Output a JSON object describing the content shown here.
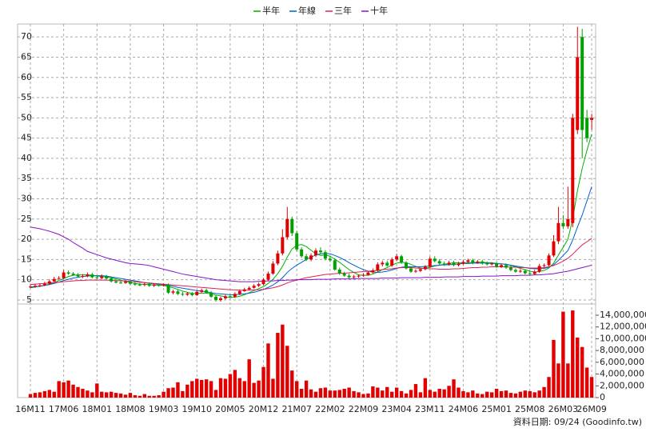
{
  "chart_data": {
    "type": "candlestick",
    "legend": "top",
    "source": "資料日期: 09/24  (Goodinfo.tw)",
    "categories": [
      "16M11",
      null,
      null,
      null,
      null,
      null,
      null,
      "17M06",
      null,
      null,
      null,
      null,
      null,
      null,
      "18M01",
      null,
      null,
      null,
      null,
      null,
      null,
      "18M08",
      null,
      null,
      null,
      null,
      null,
      null,
      "19M03",
      null,
      null,
      null,
      null,
      null,
      null,
      "19M10",
      null,
      null,
      null,
      null,
      null,
      null,
      "20M05",
      null,
      null,
      null,
      null,
      null,
      null,
      "20M12",
      null,
      null,
      null,
      null,
      null,
      null,
      "21M07",
      null,
      null,
      null,
      null,
      null,
      null,
      "22M02",
      null,
      null,
      null,
      null,
      null,
      null,
      "22M09",
      null,
      null,
      null,
      null,
      null,
      null,
      "23M04",
      null,
      null,
      null,
      null,
      null,
      null,
      "23M11",
      null,
      null,
      null,
      null,
      null,
      null,
      "24M06",
      null,
      null,
      null,
      null,
      null,
      null,
      "25M01",
      null,
      null,
      null,
      null,
      null,
      null,
      "25M08",
      null,
      null,
      null,
      null,
      null,
      null,
      "26M03",
      null,
      null,
      null,
      null,
      null,
      "26M09"
    ],
    "open": [
      8.1,
      8.3,
      8.5,
      8.6,
      9.0,
      9.6,
      10.2,
      10.4,
      11.8,
      11.5,
      11.2,
      10.8,
      10.9,
      11.3,
      10.6,
      10.4,
      10.8,
      10.3,
      9.6,
      9.3,
      9.2,
      9.5,
      9.0,
      8.8,
      8.7,
      8.9,
      8.5,
      8.7,
      8.6,
      8.7,
      6.8,
      7.1,
      6.5,
      6.3,
      6.6,
      6.2,
      7.0,
      7.4,
      6.8,
      5.8,
      5.0,
      5.4,
      5.9,
      5.8,
      6.5,
      7.2,
      7.6,
      8.0,
      8.5,
      8.9,
      10.0,
      11.5,
      14.0,
      16.5,
      20.5,
      25.0,
      21.5,
      17.5,
      15.8,
      15.0,
      16.0,
      17.2,
      16.8,
      15.2,
      14.8,
      12.5,
      11.5,
      11.0,
      10.6,
      10.8,
      11.0,
      11.2,
      11.8,
      12.3,
      13.8,
      14.2,
      13.5,
      15.0,
      15.8,
      14.2,
      12.8,
      12.0,
      12.2,
      12.6,
      13.2,
      15.2,
      14.6,
      14.0,
      13.8,
      14.2,
      13.6,
      14.0,
      14.4,
      14.8,
      14.2,
      14.5,
      14.0,
      13.8,
      14.0,
      13.2,
      13.6,
      13.0,
      12.4,
      12.0,
      12.2,
      11.6,
      11.4,
      12.0,
      13.4,
      13.6,
      16.0,
      19.5,
      24.0,
      23.2,
      24.0,
      47.0,
      70.0,
      50.0,
      49.5
    ],
    "high": [
      8.8,
      9.0,
      9.1,
      9.5,
      10.1,
      10.7,
      10.9,
      12.4,
      12.3,
      11.9,
      11.6,
      11.4,
      11.8,
      11.7,
      10.9,
      11.3,
      11.2,
      10.7,
      10.0,
      9.7,
      9.9,
      9.9,
      9.4,
      9.2,
      9.3,
      9.3,
      9.1,
      9.1,
      9.1,
      9.1,
      7.5,
      7.5,
      7.0,
      6.9,
      7.0,
      7.4,
      7.8,
      7.8,
      7.2,
      6.2,
      5.8,
      6.3,
      6.3,
      6.9,
      7.6,
      8.0,
      8.4,
      8.9,
      9.3,
      10.4,
      12.0,
      14.6,
      17.2,
      22.5,
      28.0,
      25.6,
      22.0,
      18.0,
      16.4,
      16.5,
      17.8,
      18.0,
      17.3,
      15.8,
      15.3,
      13.0,
      12.0,
      11.5,
      11.2,
      11.3,
      11.6,
      12.2,
      12.8,
      14.3,
      14.7,
      14.7,
      15.5,
      16.4,
      16.2,
      14.6,
      13.3,
      12.6,
      12.7,
      13.6,
      15.7,
      15.8,
      15.1,
      14.5,
      14.7,
      14.7,
      14.4,
      14.8,
      15.2,
      15.2,
      14.9,
      14.9,
      14.5,
      14.3,
      14.4,
      13.9,
      14.0,
      13.4,
      12.8,
      12.6,
      12.6,
      12.0,
      12.4,
      13.9,
      14.0,
      16.5,
      21.0,
      28.0,
      26.0,
      33.0,
      51.0,
      72.5,
      72.0,
      52.0,
      51.0
    ],
    "low": [
      7.9,
      8.0,
      8.2,
      8.4,
      8.8,
      9.4,
      10.0,
      10.2,
      11.2,
      11.0,
      10.6,
      10.4,
      10.6,
      10.3,
      10.1,
      10.1,
      10.0,
      9.3,
      9.1,
      9.0,
      9.0,
      8.7,
      8.5,
      8.4,
      8.4,
      8.2,
      8.2,
      8.3,
      8.3,
      6.5,
      6.4,
      6.2,
      6.0,
      6.0,
      5.9,
      6.0,
      6.7,
      6.6,
      5.5,
      4.6,
      4.6,
      5.1,
      5.5,
      5.5,
      6.2,
      7.0,
      7.4,
      7.8,
      8.2,
      8.6,
      9.6,
      11.2,
      13.6,
      16.0,
      20.0,
      20.8,
      17.0,
      15.4,
      14.6,
      14.6,
      15.6,
      16.4,
      14.8,
      14.4,
      12.2,
      11.2,
      10.7,
      10.3,
      10.3,
      10.5,
      10.7,
      11.0,
      11.5,
      12.0,
      13.3,
      13.2,
      13.2,
      14.6,
      13.9,
      12.5,
      11.7,
      11.7,
      11.9,
      12.3,
      12.9,
      14.3,
      13.7,
      13.4,
      13.5,
      13.3,
      13.3,
      13.7,
      14.1,
      13.8,
      13.9,
      13.7,
      13.5,
      13.5,
      12.9,
      12.9,
      12.7,
      12.1,
      11.7,
      11.7,
      11.3,
      11.1,
      11.1,
      11.7,
      13.1,
      13.3,
      15.6,
      18.8,
      22.5,
      22.6,
      23.0,
      46.0,
      40.0,
      44.0,
      47.0
    ],
    "close": [
      8.3,
      8.5,
      8.6,
      9.0,
      9.6,
      10.2,
      10.4,
      11.8,
      11.5,
      11.2,
      10.8,
      10.9,
      11.3,
      10.6,
      10.4,
      10.8,
      10.3,
      9.6,
      9.3,
      9.2,
      9.5,
      9.0,
      8.8,
      8.7,
      8.9,
      8.5,
      8.7,
      8.6,
      8.7,
      6.8,
      7.1,
      6.5,
      6.3,
      6.6,
      6.2,
      7.0,
      7.4,
      6.8,
      5.8,
      5.0,
      5.4,
      5.9,
      5.8,
      6.5,
      7.2,
      7.6,
      8.0,
      8.5,
      8.9,
      10.0,
      11.5,
      14.0,
      16.5,
      20.5,
      25.0,
      21.5,
      17.5,
      15.8,
      15.0,
      16.0,
      17.2,
      16.8,
      15.2,
      14.8,
      12.5,
      11.5,
      11.0,
      10.6,
      10.8,
      11.0,
      11.2,
      11.8,
      12.3,
      13.8,
      14.2,
      13.5,
      15.0,
      15.8,
      14.2,
      12.8,
      12.0,
      12.2,
      12.6,
      13.2,
      15.2,
      14.6,
      14.0,
      13.8,
      14.2,
      13.6,
      14.0,
      14.4,
      14.8,
      14.2,
      14.5,
      14.0,
      13.8,
      14.0,
      13.2,
      13.6,
      13.0,
      12.4,
      12.0,
      12.2,
      11.6,
      11.4,
      12.0,
      13.4,
      13.6,
      16.0,
      19.5,
      24.0,
      23.2,
      25.0,
      50.0,
      65.0,
      47.0,
      45.0,
      50.0
    ],
    "up_color": "#e00000",
    "down_color": "#00a000",
    "ylim": [
      4,
      73.2
    ],
    "yticks": [
      5,
      10,
      15,
      20,
      25,
      30,
      35,
      40,
      45,
      50,
      55,
      60,
      65,
      70
    ],
    "grid": true,
    "series": [
      {
        "name": "半年",
        "color": "#00b000",
        "values": [
          8.0,
          8.2,
          8.4,
          8.6,
          8.9,
          9.3,
          9.8,
          10.3,
          10.8,
          11.1,
          11.2,
          11.2,
          11.2,
          11.1,
          10.9,
          10.8,
          10.7,
          10.5,
          10.2,
          9.9,
          9.6,
          9.3,
          9.1,
          8.9,
          8.9,
          8.8,
          8.7,
          8.7,
          8.6,
          8.3,
          8.0,
          7.6,
          7.2,
          6.9,
          6.6,
          6.6,
          6.7,
          6.7,
          6.5,
          6.2,
          6.0,
          5.8,
          5.6,
          5.7,
          5.9,
          6.3,
          6.8,
          7.3,
          7.8,
          8.3,
          9.1,
          10.1,
          11.5,
          13.3,
          15.6,
          17.6,
          18.5,
          18.7,
          18.2,
          17.3,
          16.4,
          16.0,
          16.1,
          15.8,
          15.1,
          14.3,
          13.4,
          12.5,
          11.8,
          11.2,
          11.1,
          11.1,
          11.4,
          11.9,
          12.5,
          13.0,
          13.6,
          14.1,
          14.3,
          14.2,
          13.8,
          13.3,
          12.9,
          12.8,
          13.1,
          13.4,
          13.6,
          13.8,
          14.0,
          14.2,
          14.2,
          14.1,
          14.2,
          14.2,
          14.3,
          14.3,
          14.2,
          14.2,
          14.0,
          13.9,
          13.8,
          13.5,
          13.2,
          12.8,
          12.5,
          12.1,
          11.9,
          12.0,
          12.3,
          12.9,
          14.1,
          16.1,
          18.0,
          20.0,
          25.0,
          32.0,
          37.5,
          42.0,
          46.0
        ]
      },
      {
        "name": "年線",
        "color": "#0060d0",
        "values": [
          8.2,
          8.3,
          8.4,
          8.6,
          8.8,
          9.1,
          9.4,
          9.8,
          10.1,
          10.4,
          10.6,
          10.8,
          10.9,
          11.0,
          11.0,
          11.0,
          10.9,
          10.7,
          10.5,
          10.3,
          10.1,
          9.9,
          9.7,
          9.5,
          9.3,
          9.1,
          9.0,
          8.9,
          8.8,
          8.6,
          8.4,
          8.1,
          7.9,
          7.7,
          7.5,
          7.3,
          7.2,
          7.0,
          6.8,
          6.6,
          6.5,
          6.4,
          6.3,
          6.3,
          6.4,
          6.5,
          6.7,
          6.9,
          7.2,
          7.6,
          8.1,
          8.7,
          9.5,
          10.5,
          11.8,
          12.8,
          13.6,
          14.3,
          15.0,
          15.6,
          16.1,
          16.4,
          16.5,
          16.4,
          16.0,
          15.5,
          14.9,
          14.2,
          13.6,
          13.0,
          12.5,
          12.1,
          11.9,
          11.8,
          11.9,
          12.1,
          12.4,
          12.8,
          13.1,
          13.2,
          13.2,
          13.2,
          13.2,
          13.3,
          13.4,
          13.5,
          13.6,
          13.7,
          13.7,
          13.8,
          13.9,
          14.0,
          14.0,
          14.1,
          14.1,
          14.1,
          14.1,
          14.0,
          14.0,
          13.9,
          13.8,
          13.6,
          13.4,
          13.2,
          13.0,
          12.8,
          12.7,
          12.7,
          12.8,
          13.1,
          13.7,
          14.8,
          16.0,
          17.2,
          19.8,
          23.0,
          26.0,
          29.5,
          33.0
        ]
      },
      {
        "name": "三年",
        "color": "#e0205a",
        "values": [
          8.8,
          8.9,
          9.0,
          9.1,
          9.2,
          9.3,
          9.4,
          9.5,
          9.6,
          9.7,
          9.8,
          9.8,
          9.9,
          9.9,
          9.9,
          9.9,
          9.9,
          9.8,
          9.8,
          9.7,
          9.7,
          9.6,
          9.5,
          9.4,
          9.3,
          9.2,
          9.1,
          9.0,
          8.9,
          8.8,
          8.7,
          8.6,
          8.5,
          8.4,
          8.3,
          8.2,
          8.1,
          8.0,
          7.9,
          7.8,
          7.7,
          7.6,
          7.5,
          7.5,
          7.4,
          7.4,
          7.4,
          7.5,
          7.5,
          7.6,
          7.8,
          8.0,
          8.3,
          8.7,
          9.2,
          9.6,
          9.9,
          10.2,
          10.5,
          10.7,
          10.9,
          11.1,
          11.3,
          11.4,
          11.5,
          11.6,
          11.6,
          11.7,
          11.8,
          11.9,
          12.0,
          12.1,
          12.2,
          12.3,
          12.5,
          12.6,
          12.7,
          12.9,
          13.0,
          13.0,
          13.0,
          12.9,
          12.8,
          12.8,
          12.7,
          12.7,
          12.6,
          12.6,
          12.6,
          12.7,
          12.7,
          12.8,
          12.9,
          13.0,
          13.0,
          13.1,
          13.1,
          13.2,
          13.2,
          13.2,
          13.2,
          13.1,
          13.1,
          13.0,
          13.0,
          12.9,
          12.9,
          12.9,
          13.0,
          13.2,
          13.5,
          14.0,
          14.6,
          15.3,
          16.3,
          17.5,
          18.6,
          19.4,
          20.2
        ]
      },
      {
        "name": "十年",
        "color": "#8a10c8",
        "values": [
          23.0,
          22.8,
          22.6,
          22.3,
          22.0,
          21.6,
          21.2,
          20.6,
          20.0,
          19.2,
          18.5,
          17.8,
          17.0,
          16.6,
          16.2,
          15.8,
          15.4,
          15.1,
          14.8,
          14.5,
          14.2,
          14.0,
          13.9,
          13.8,
          13.7,
          13.5,
          13.2,
          12.9,
          12.6,
          12.3,
          12.0,
          11.7,
          11.4,
          11.2,
          11.0,
          10.8,
          10.6,
          10.4,
          10.2,
          10.0,
          9.9,
          9.8,
          9.7,
          9.6,
          9.5,
          9.5,
          9.5,
          9.5,
          9.6,
          9.6,
          9.7,
          9.7,
          9.8,
          9.8,
          9.9,
          9.9,
          10.0,
          10.0,
          10.0,
          10.0,
          10.1,
          10.1,
          10.1,
          10.1,
          10.2,
          10.2,
          10.2,
          10.2,
          10.2,
          10.3,
          10.3,
          10.3,
          10.3,
          10.3,
          10.4,
          10.4,
          10.4,
          10.4,
          10.5,
          10.5,
          10.5,
          10.5,
          10.5,
          10.6,
          10.6,
          10.6,
          10.6,
          10.7,
          10.7,
          10.7,
          10.7,
          10.8,
          10.8,
          10.8,
          10.8,
          10.9,
          10.9,
          10.9,
          10.9,
          11.0,
          11.0,
          11.0,
          11.0,
          11.1,
          11.1,
          11.1,
          11.2,
          11.2,
          11.3,
          11.4,
          11.5,
          11.7,
          11.9,
          12.1,
          12.4,
          12.7,
          13.0,
          13.3,
          13.6
        ]
      }
    ],
    "volume": {
      "color": "#e00000",
      "ylim": [
        0,
        15900000
      ],
      "yticks": [
        0,
        {
          "value": 2000000,
          "label": "2,000,000"
        },
        {
          "value": 4000000,
          "label": "4,000,000"
        },
        {
          "value": 6000000,
          "label": "6,000,000"
        },
        {
          "value": 8000000,
          "label": "8,000,000"
        },
        {
          "value": 10000000,
          "label": "10,000,000"
        },
        {
          "value": 12000000,
          "label": "12,000,000"
        },
        {
          "value": 14000000,
          "label": "14,000,000"
        }
      ],
      "values": [
        600000,
        800000,
        900000,
        1100000,
        1300000,
        1000000,
        2800000,
        2600000,
        2900000,
        2200000,
        1800000,
        1500000,
        1200000,
        900000,
        2400000,
        1000000,
        900000,
        1000000,
        800000,
        700000,
        500000,
        800000,
        400000,
        300000,
        600000,
        300000,
        300000,
        400000,
        1000000,
        1600000,
        1700000,
        2600000,
        1100000,
        2200000,
        2800000,
        3200000,
        3000000,
        3100000,
        2800000,
        1300000,
        3300000,
        3200000,
        4000000,
        4700000,
        3300000,
        2800000,
        6500000,
        2500000,
        2900000,
        5200000,
        9200000,
        3200000,
        11000000,
        12400000,
        8800000,
        4600000,
        2800000,
        1500000,
        2900000,
        1400000,
        1000000,
        1600000,
        1700000,
        1200000,
        1200000,
        1300000,
        1500000,
        1700000,
        1100000,
        900000,
        600000,
        700000,
        1900000,
        1700000,
        1200000,
        1800000,
        1000000,
        1700000,
        1100000,
        700000,
        1300000,
        2300000,
        900000,
        3300000,
        1300000,
        1000000,
        1500000,
        1400000,
        2000000,
        3100000,
        1700000,
        1100000,
        900000,
        1200000,
        700000,
        600000,
        1000000,
        900000,
        1500000,
        1100000,
        1200000,
        800000,
        700000,
        1000000,
        1200000,
        1100000,
        900000,
        1200000,
        1800000,
        3500000,
        9800000,
        5800000,
        14600000,
        5800000,
        14800000,
        10200000,
        8600000,
        5100000,
        3500000
      ]
    }
  }
}
